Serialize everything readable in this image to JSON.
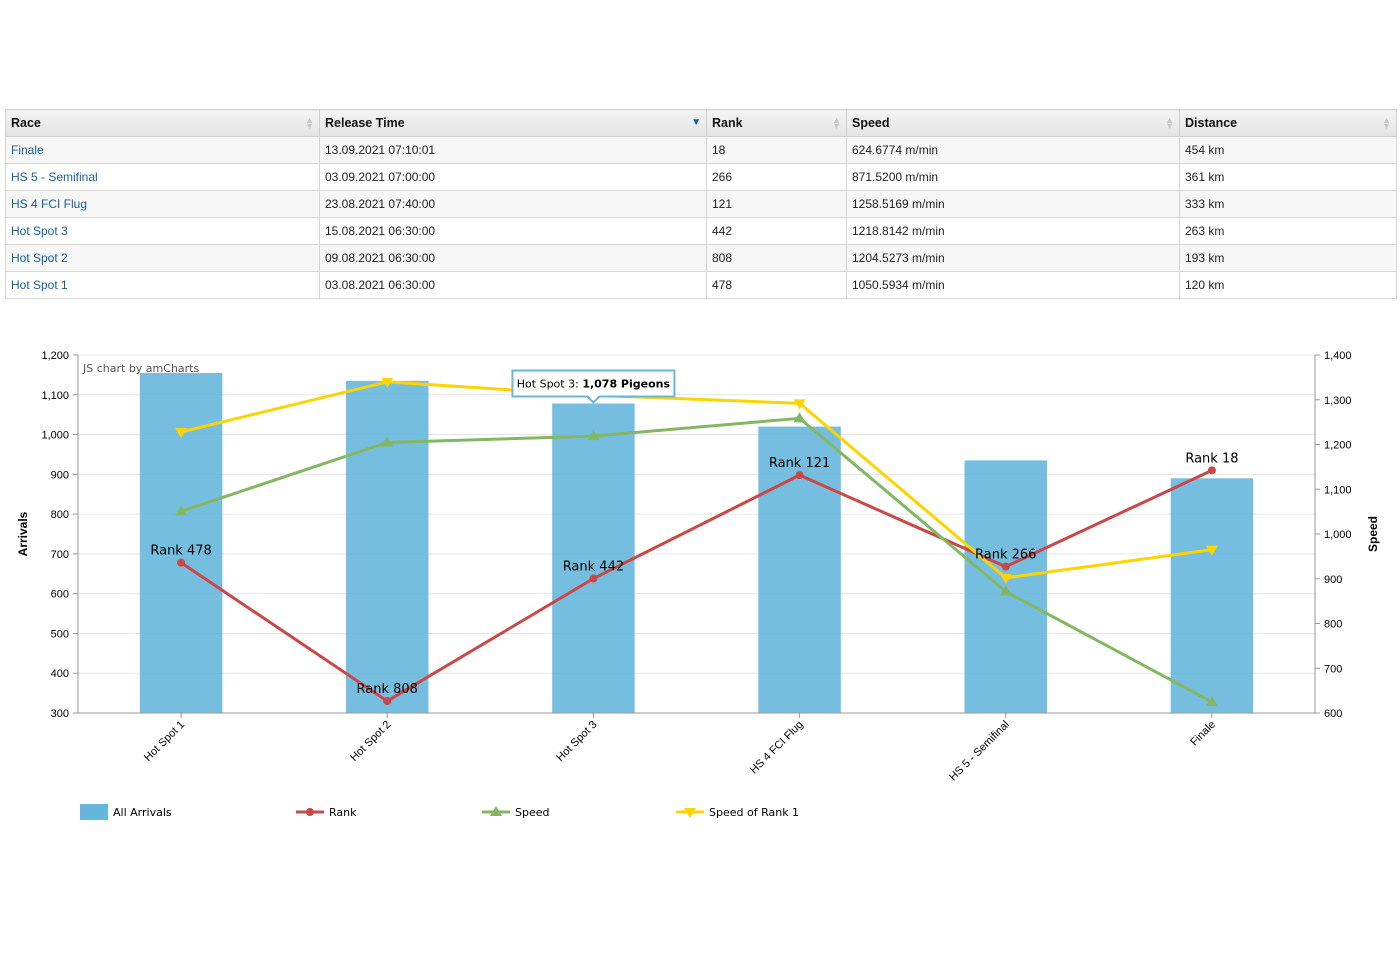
{
  "table": {
    "headers": [
      {
        "label": "Race",
        "sort": "none"
      },
      {
        "label": "Release Time",
        "sort": "desc"
      },
      {
        "label": "Rank",
        "sort": "none"
      },
      {
        "label": "Speed",
        "sort": "none"
      },
      {
        "label": "Distance",
        "sort": "none"
      }
    ],
    "rows": [
      {
        "race": "Finale",
        "release": "13.09.2021 07:10:01",
        "rank": "18",
        "speed": "624.6774 m/min",
        "distance": "454 km"
      },
      {
        "race": "HS 5 - Semifinal",
        "release": "03.09.2021 07:00:00",
        "rank": "266",
        "speed": "871.5200 m/min",
        "distance": "361 km"
      },
      {
        "race": "HS 4 FCI Flug",
        "release": "23.08.2021 07:40:00",
        "rank": "121",
        "speed": "1258.5169 m/min",
        "distance": "333 km"
      },
      {
        "race": "Hot Spot 3",
        "release": "15.08.2021 06:30:00",
        "rank": "442",
        "speed": "1218.8142 m/min",
        "distance": "263 km"
      },
      {
        "race": "Hot Spot 2",
        "release": "09.08.2021 06:30:00",
        "rank": "808",
        "speed": "1204.5273 m/min",
        "distance": "193 km"
      },
      {
        "race": "Hot Spot 1",
        "release": "03.08.2021 06:30:00",
        "rank": "478",
        "speed": "1050.5934 m/min",
        "distance": "120 km"
      }
    ]
  },
  "credit": "JS chart by amCharts",
  "balloon": {
    "category": "Hot Spot 3",
    "separator": ": ",
    "value": "1,078 Pigeons"
  },
  "chart_data": {
    "type": "bar",
    "categories": [
      "Hot Spot 1",
      "Hot Spot 2",
      "Hot Spot 3",
      "HS 4 FCI Flug",
      "HS 5 - Semifinal",
      "Finale"
    ],
    "left_axis": {
      "title": "Arrivals",
      "min": 300,
      "max": 1200,
      "ticks": [
        300,
        400,
        500,
        600,
        700,
        800,
        900,
        1000,
        1100,
        1200
      ],
      "tick_labels": [
        "300",
        "400",
        "500",
        "600",
        "700",
        "800",
        "900",
        "1,000",
        "1,100",
        "1,200"
      ]
    },
    "right_axis": {
      "title": "Speed",
      "min": 600,
      "max": 1400,
      "ticks": [
        600,
        700,
        800,
        900,
        1000,
        1100,
        1200,
        1300,
        1400
      ],
      "tick_labels": [
        "600",
        "700",
        "800",
        "900",
        "1,000",
        "1,100",
        "1,200",
        "1,300",
        "1,400"
      ]
    },
    "grid": true,
    "legend_position": "bottom-left",
    "series": [
      {
        "name": "All Arrivals",
        "type": "bar",
        "axis": "left",
        "color": "#67b7dc",
        "values": [
          1155,
          1135,
          1078,
          1020,
          935,
          890
        ]
      },
      {
        "name": "Rank",
        "type": "line",
        "axis": "left",
        "color": "#cc4748",
        "marker": "circle",
        "values": [
          678,
          330,
          638,
          898,
          668,
          910
        ],
        "labels": [
          "Rank 478",
          "Rank 808",
          "Rank 442",
          "Rank 121",
          "Rank 266",
          "Rank 18"
        ]
      },
      {
        "name": "Speed",
        "type": "line",
        "axis": "right",
        "color": "#84b761",
        "marker": "triangle-up",
        "values": [
          1050.5934,
          1204.5273,
          1218.8142,
          1258.5169,
          871.52,
          624.6774
        ]
      },
      {
        "name": "Speed of Rank 1",
        "type": "line",
        "axis": "right",
        "color": "#fdd400",
        "marker": "triangle-down",
        "values": [
          1228,
          1340,
          1310,
          1292,
          902,
          965
        ]
      }
    ]
  }
}
